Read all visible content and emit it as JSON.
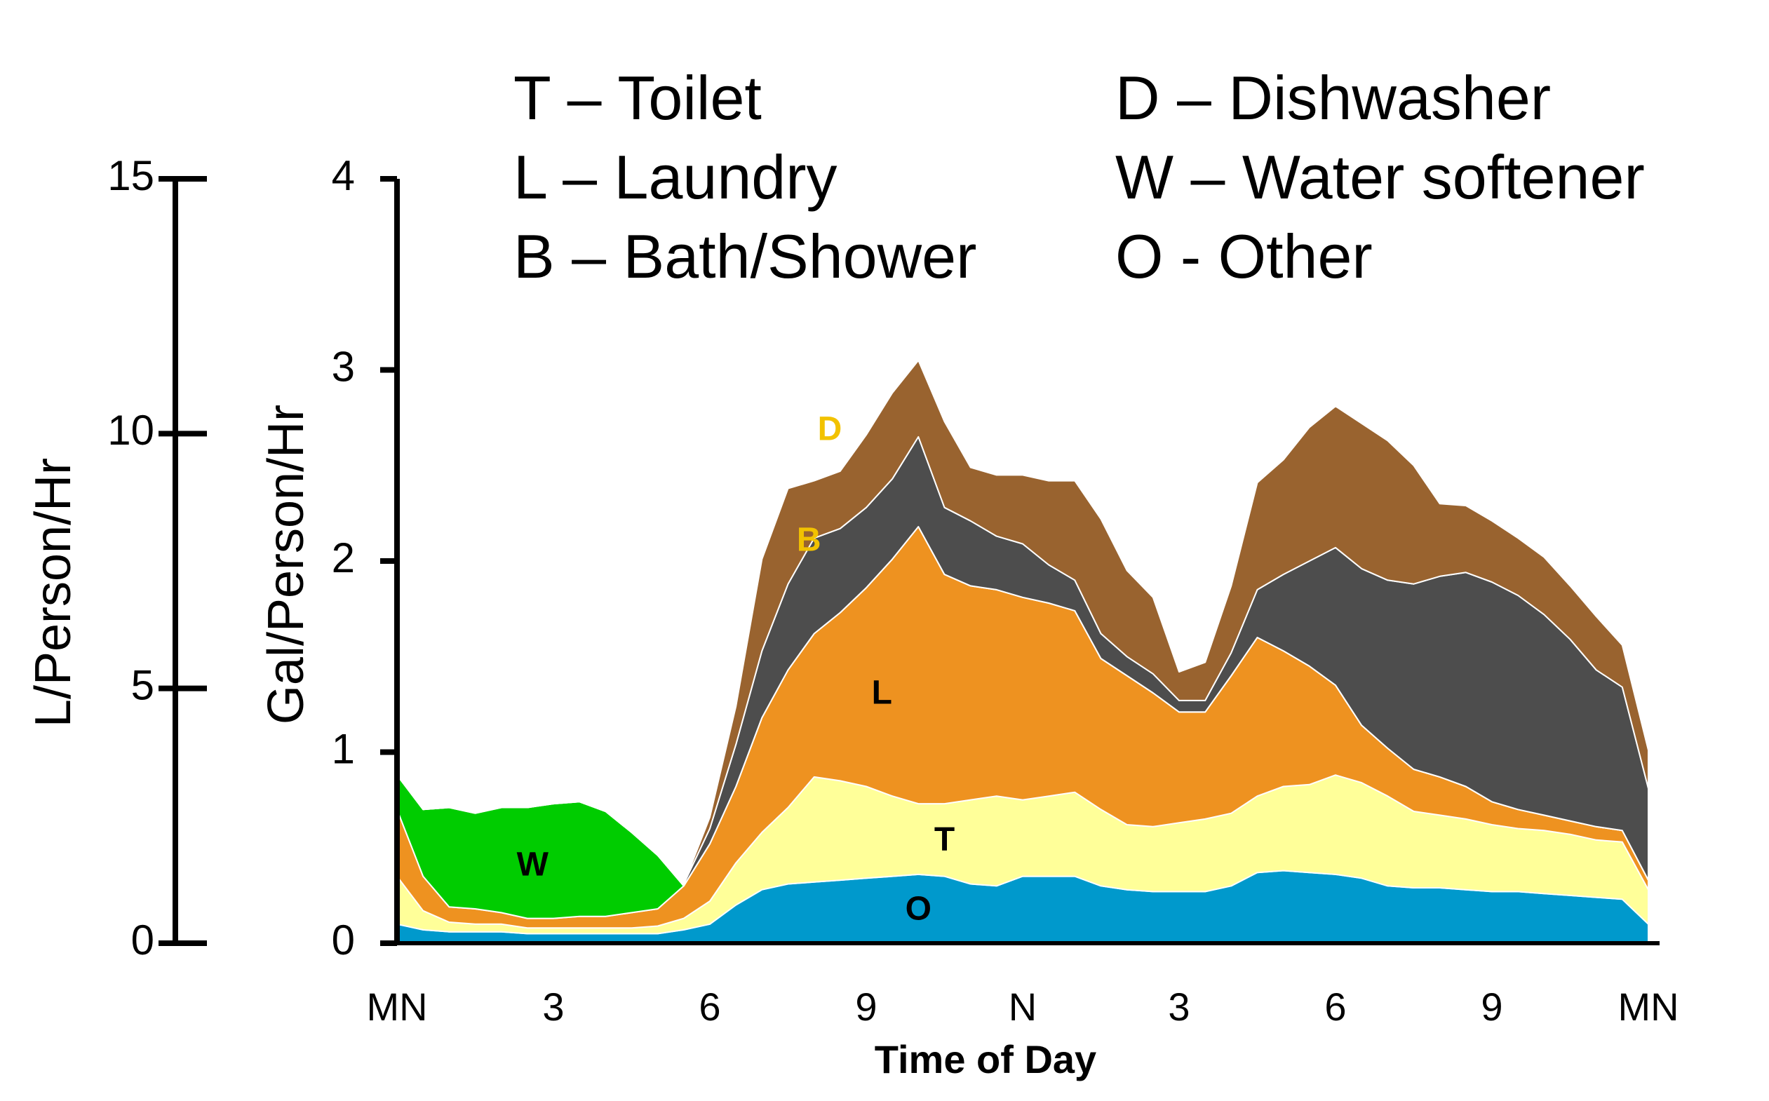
{
  "chart_data": {
    "type": "area",
    "stacked": true,
    "xlabel": "Time of Day",
    "ylabel": "Gal/Person/Hr",
    "ylabel_secondary": "L/Person/Hr",
    "ylim": [
      0,
      4
    ],
    "ylim_secondary": [
      0,
      15
    ],
    "yticks": [
      "0",
      "1",
      "2",
      "3",
      "4"
    ],
    "yticks_secondary": [
      "0",
      "5",
      "10",
      "15"
    ],
    "x_ticks": [
      "MN",
      "3",
      "6",
      "9",
      "N",
      "3",
      "6",
      "9",
      "MN"
    ],
    "x_hours": [
      0,
      0.5,
      1,
      1.5,
      2,
      2.5,
      3,
      3.5,
      4,
      4.5,
      5,
      5.5,
      6,
      6.5,
      7,
      7.5,
      8,
      8.5,
      9,
      9.5,
      10,
      10.5,
      11,
      11.5,
      12,
      12.5,
      13,
      13.5,
      14,
      14.5,
      15,
      15.5,
      16,
      16.5,
      17,
      17.5,
      18,
      18.5,
      19,
      19.5,
      20,
      20.5,
      21,
      21.5,
      22,
      22.5,
      23,
      23.5,
      24
    ],
    "legend": [
      {
        "code": "T",
        "text": "T – Toilet"
      },
      {
        "code": "L",
        "text": "L – Laundry"
      },
      {
        "code": "B",
        "text": "B – Bath/Shower"
      },
      {
        "code": "D",
        "text": "D – Dishwasher"
      },
      {
        "code": "W",
        "text": "W – Water softener"
      },
      {
        "code": "O",
        "text": "O - Other"
      }
    ],
    "series": [
      {
        "name": "O",
        "color": "#0099cc",
        "label_color": "#000000",
        "label_at": [
          10,
          0.17
        ],
        "values": [
          0.1,
          0.07,
          0.06,
          0.06,
          0.06,
          0.05,
          0.05,
          0.05,
          0.05,
          0.05,
          0.05,
          0.07,
          0.1,
          0.2,
          0.28,
          0.31,
          0.32,
          0.33,
          0.34,
          0.35,
          0.36,
          0.35,
          0.31,
          0.3,
          0.35,
          0.35,
          0.35,
          0.3,
          0.28,
          0.27,
          0.27,
          0.27,
          0.3,
          0.37,
          0.38,
          0.37,
          0.36,
          0.34,
          0.3,
          0.29,
          0.29,
          0.28,
          0.27,
          0.27,
          0.26,
          0.25,
          0.24,
          0.23,
          0.1
        ]
      },
      {
        "name": "T",
        "color": "#ffff99",
        "label_color": "#000000",
        "label_at": [
          10.5,
          0.53
        ],
        "values": [
          0.25,
          0.1,
          0.05,
          0.04,
          0.04,
          0.03,
          0.03,
          0.03,
          0.03,
          0.03,
          0.04,
          0.06,
          0.12,
          0.22,
          0.3,
          0.4,
          0.55,
          0.52,
          0.48,
          0.42,
          0.37,
          0.38,
          0.44,
          0.47,
          0.4,
          0.42,
          0.44,
          0.4,
          0.34,
          0.34,
          0.36,
          0.38,
          0.38,
          0.4,
          0.44,
          0.46,
          0.52,
          0.5,
          0.47,
          0.4,
          0.38,
          0.37,
          0.35,
          0.33,
          0.33,
          0.32,
          0.3,
          0.3,
          0.18
        ]
      },
      {
        "name": "L",
        "color": "#ee9220",
        "label_color": "#000000",
        "label_at": [
          9.3,
          1.3
        ],
        "values": [
          0.35,
          0.18,
          0.08,
          0.08,
          0.06,
          0.05,
          0.05,
          0.06,
          0.06,
          0.08,
          0.09,
          0.17,
          0.3,
          0.4,
          0.6,
          0.72,
          0.75,
          0.88,
          1.04,
          1.24,
          1.45,
          1.2,
          1.12,
          1.08,
          1.06,
          1.01,
          0.95,
          0.79,
          0.78,
          0.7,
          0.58,
          0.56,
          0.72,
          0.83,
          0.71,
          0.62,
          0.47,
          0.3,
          0.25,
          0.22,
          0.2,
          0.17,
          0.12,
          0.1,
          0.08,
          0.07,
          0.07,
          0.06,
          0.05
        ]
      },
      {
        "name": "W",
        "color": "#00cc00",
        "label_color": "#000000",
        "label_at": [
          2.6,
          0.4
        ],
        "values": [
          0.18,
          0.35,
          0.52,
          0.5,
          0.55,
          0.58,
          0.6,
          0.6,
          0.55,
          0.42,
          0.28,
          0.0,
          0.0,
          0.0,
          0.0,
          0.0,
          0.0,
          0.0,
          0.0,
          0.0,
          0.0,
          0.0,
          0.0,
          0.0,
          0.0,
          0.0,
          0.0,
          0.0,
          0.0,
          0.0,
          0.0,
          0.0,
          0.0,
          0.0,
          0.0,
          0.0,
          0.0,
          0.0,
          0.0,
          0.0,
          0.0,
          0.0,
          0.0,
          0.0,
          0.0,
          0.0,
          0.0,
          0.0,
          0.0
        ]
      },
      {
        "name": "B",
        "color": "#4d4d4d",
        "label_color": "#f2c200",
        "label_at": [
          7.9,
          2.1
        ],
        "values": [
          0.0,
          0.0,
          0.0,
          0.0,
          0.0,
          0.0,
          0.0,
          0.0,
          0.0,
          0.0,
          0.0,
          0.01,
          0.08,
          0.22,
          0.35,
          0.45,
          0.5,
          0.44,
          0.42,
          0.42,
          0.47,
          0.35,
          0.34,
          0.28,
          0.28,
          0.2,
          0.16,
          0.13,
          0.1,
          0.1,
          0.06,
          0.06,
          0.12,
          0.25,
          0.4,
          0.55,
          0.72,
          0.82,
          0.88,
          0.97,
          1.05,
          1.12,
          1.15,
          1.12,
          1.05,
          0.95,
          0.82,
          0.75,
          0.48
        ]
      },
      {
        "name": "D",
        "color": "#99632f",
        "label_color": "#f2c200",
        "label_at": [
          8.3,
          2.68
        ],
        "values": [
          0.0,
          0.0,
          0.0,
          0.0,
          0.0,
          0.0,
          0.0,
          0.0,
          0.0,
          0.0,
          0.0,
          0.0,
          0.06,
          0.2,
          0.48,
          0.5,
          0.3,
          0.3,
          0.38,
          0.45,
          0.4,
          0.45,
          0.28,
          0.32,
          0.36,
          0.44,
          0.52,
          0.6,
          0.45,
          0.4,
          0.15,
          0.2,
          0.35,
          0.56,
          0.6,
          0.7,
          0.74,
          0.76,
          0.73,
          0.62,
          0.38,
          0.35,
          0.32,
          0.3,
          0.3,
          0.28,
          0.28,
          0.22,
          0.2
        ]
      }
    ]
  }
}
